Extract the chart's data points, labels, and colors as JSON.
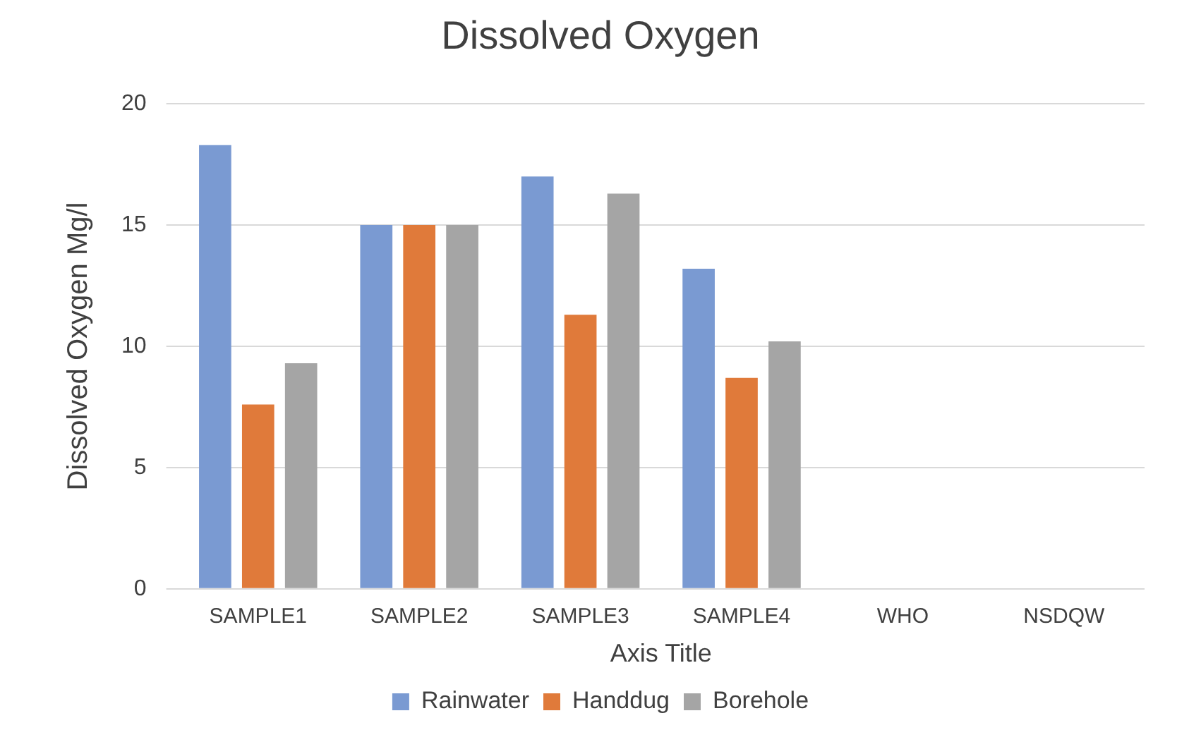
{
  "chart_data": {
    "type": "bar",
    "title": "Dissolved Oxygen",
    "xlabel": "Axis Title",
    "ylabel": "Dissolved Oxygen Mg/l",
    "categories": [
      "SAMPLE1",
      "SAMPLE2",
      "SAMPLE3",
      "SAMPLE4",
      "WHO",
      "NSDQW"
    ],
    "series": [
      {
        "name": "Rainwater",
        "color": "#7a9ad2",
        "values": [
          18.3,
          15,
          17,
          13.2,
          null,
          null
        ]
      },
      {
        "name": "Handdug",
        "color": "#e07a3a",
        "values": [
          7.6,
          15,
          11.3,
          8.7,
          null,
          null
        ]
      },
      {
        "name": "Borehole",
        "color": "#a5a5a5",
        "values": [
          9.3,
          15,
          16.3,
          10.2,
          null,
          null
        ]
      }
    ],
    "ylim": [
      0,
      20
    ],
    "yticks": [
      0,
      5,
      10,
      15,
      20
    ],
    "grid": "y",
    "legend": "bottom"
  }
}
